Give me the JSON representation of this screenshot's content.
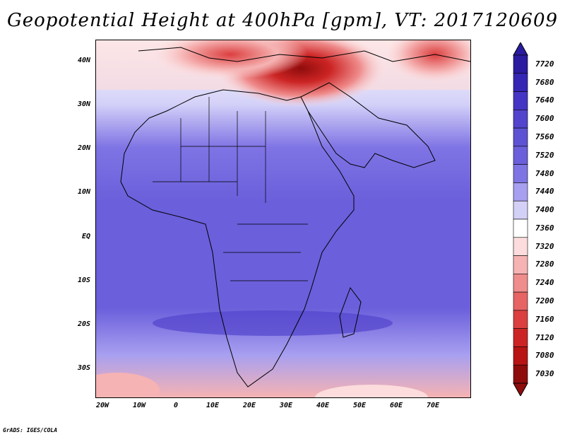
{
  "title": "Geopotential Height at 400hPa [gpm], VT: 2017120609",
  "credit": "GrADS: IGES/COLA",
  "lat_labels": [
    "40N",
    "30N",
    "20N",
    "10N",
    "EQ",
    "10S",
    "20S",
    "30S"
  ],
  "lon_labels": [
    "20W",
    "10W",
    "0",
    "10E",
    "20E",
    "30E",
    "40E",
    "50E",
    "60E",
    "70E"
  ],
  "colorbar": {
    "labels": [
      "7720",
      "7680",
      "7640",
      "7600",
      "7560",
      "7520",
      "7480",
      "7440",
      "7400",
      "7360",
      "7320",
      "7280",
      "7240",
      "7200",
      "7160",
      "7120",
      "7080",
      "7030"
    ],
    "colors": [
      "#2b1ba0",
      "#3526b4",
      "#4535c4",
      "#5244cc",
      "#5e52d4",
      "#6b5fdb",
      "#7f74e4",
      "#a79ff0",
      "#d3d0f8",
      "#ffffff",
      "#fcdcdc",
      "#f6b3b3",
      "#ef8c8c",
      "#e76464",
      "#dc3f3f",
      "#cc2424",
      "#b81414",
      "#8f0c0c"
    ]
  },
  "map": {
    "field": "Geopotential Height",
    "level": "400hPa",
    "units": "gpm",
    "valid_time": "2017120609"
  }
}
